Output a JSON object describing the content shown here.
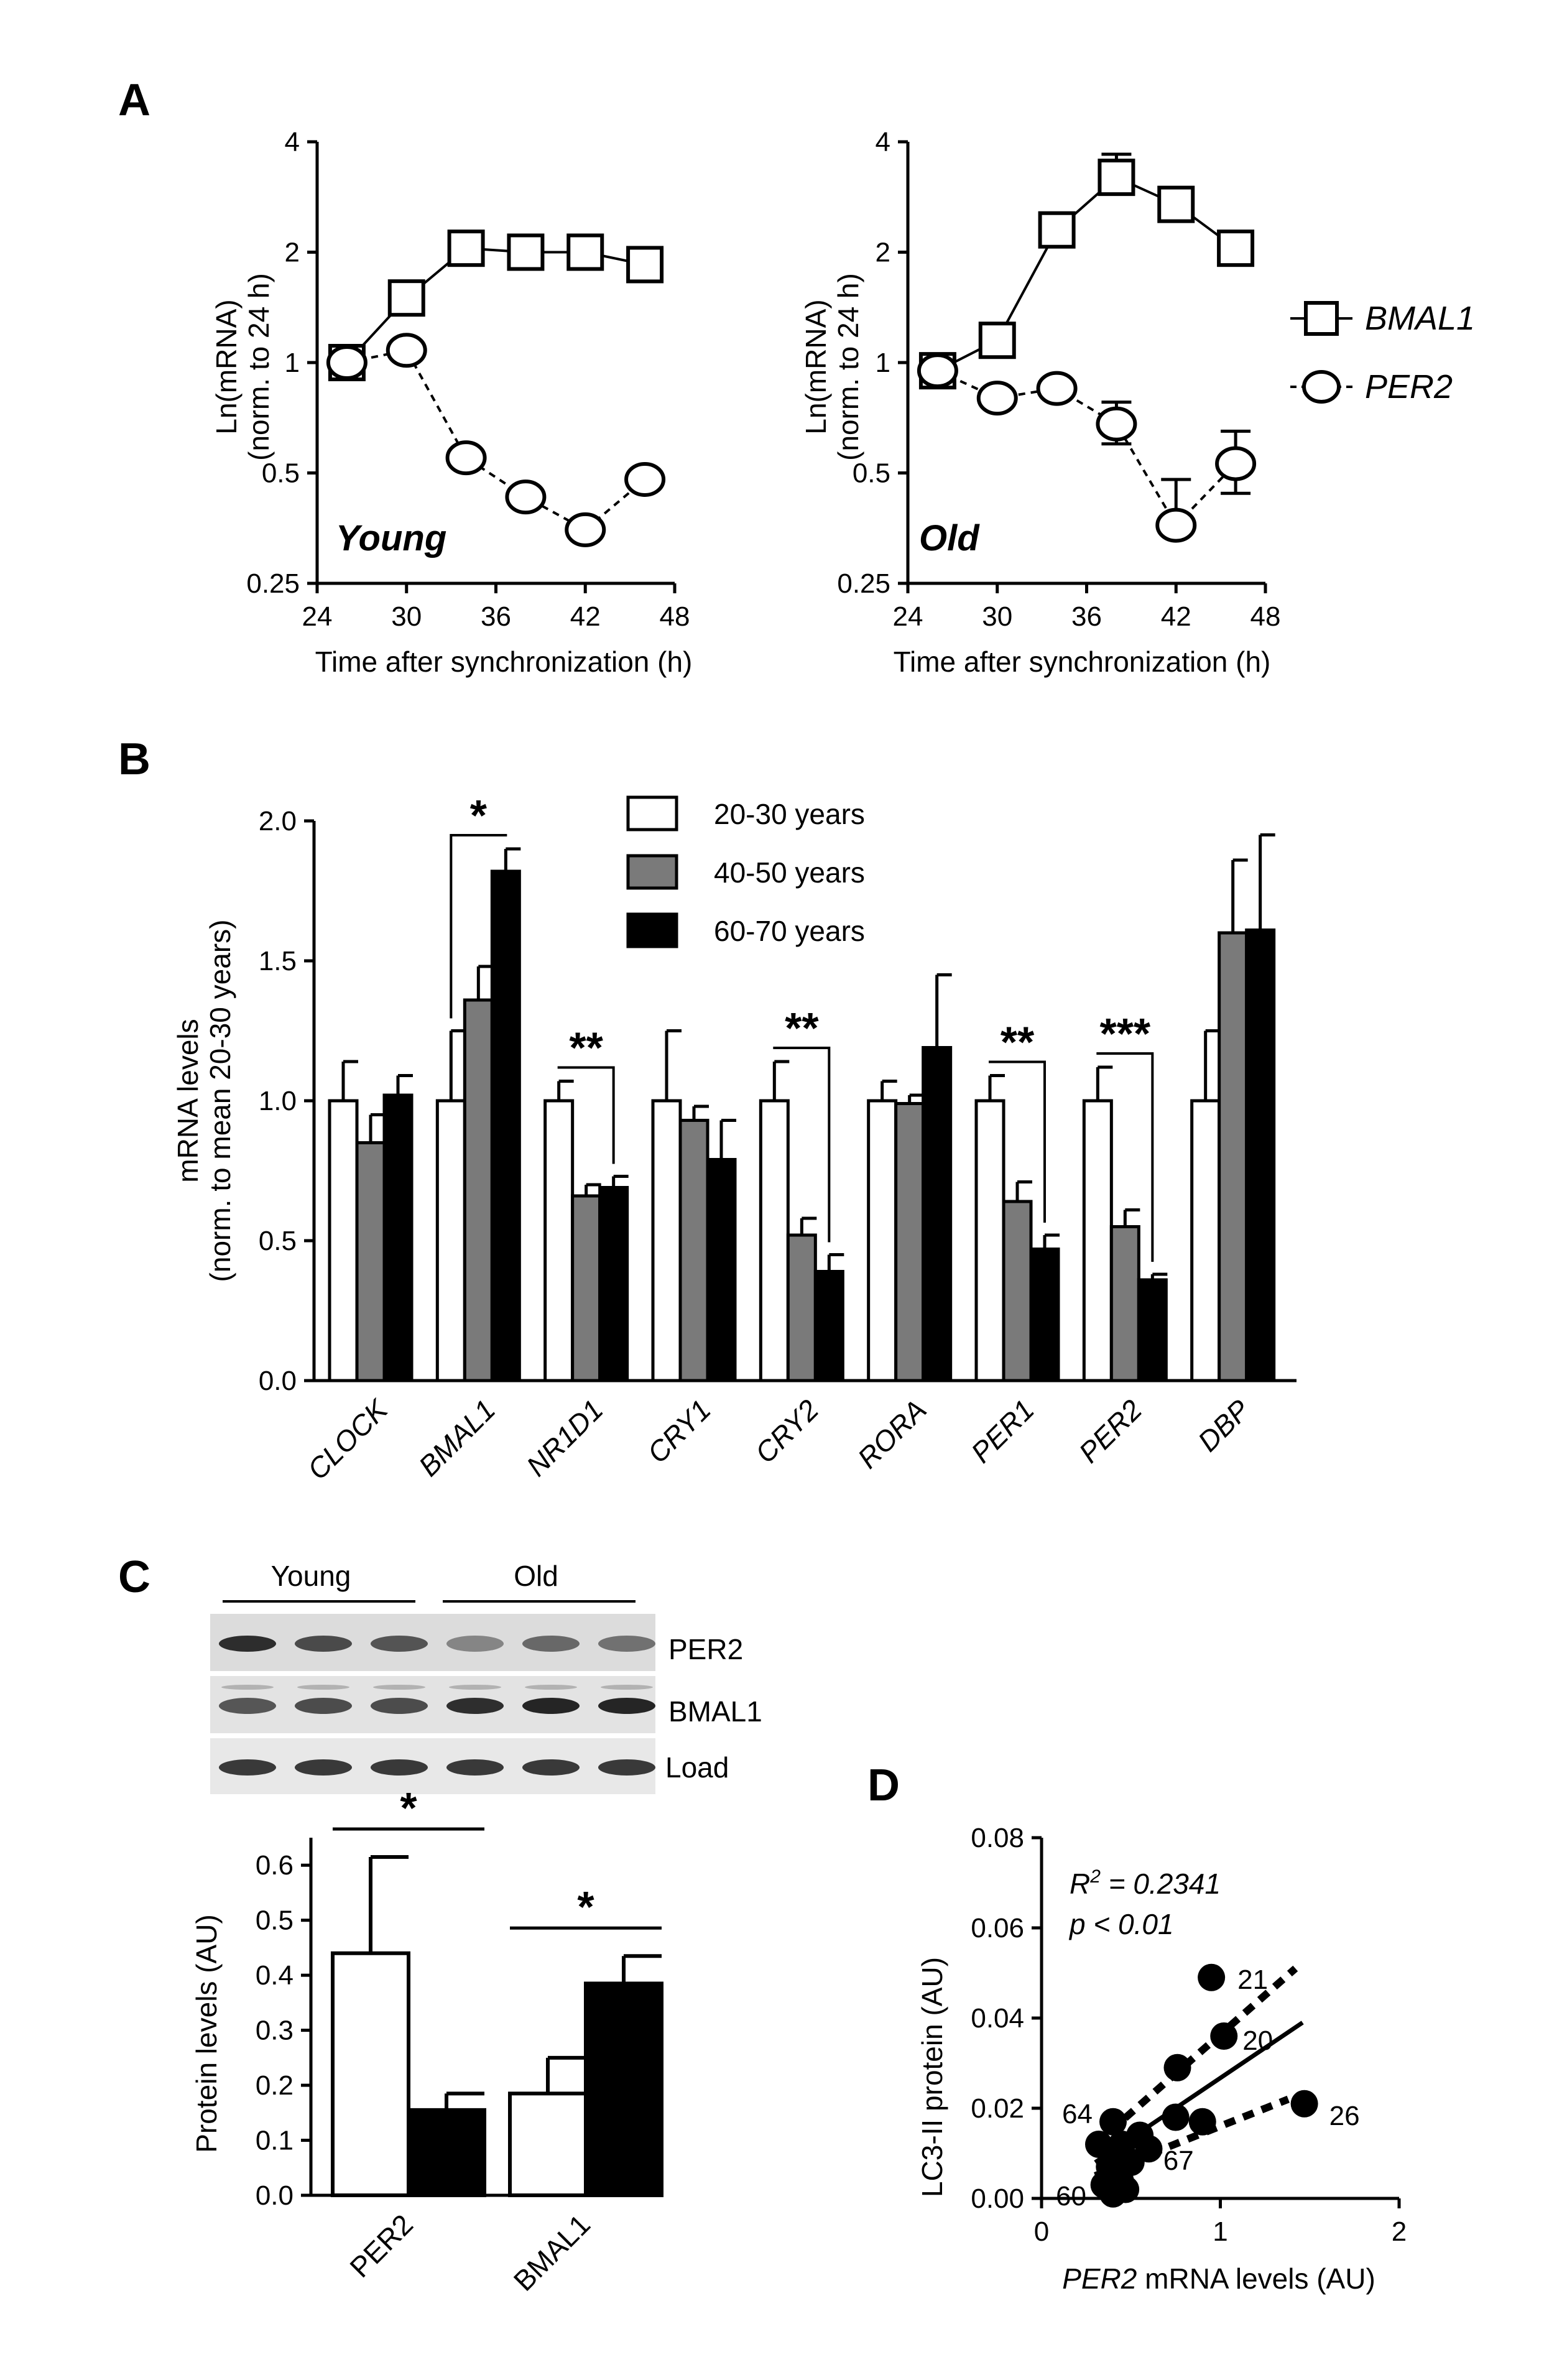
{
  "chart_data": [
    {
      "panel": "A",
      "type": "line",
      "inset_label": "Young",
      "xlabel": "Time after synchronization (h)",
      "ylabel": "Ln(mRNA)",
      "ylabel2": "(norm. to 24 h)",
      "y_scale": "log2",
      "xlim": [
        24,
        48
      ],
      "ylim": [
        0.25,
        4
      ],
      "xticks": [
        "24",
        "30",
        "36",
        "42",
        "48"
      ],
      "yticks": [
        "0.25",
        "0.5",
        "1",
        "2",
        "4"
      ],
      "x": [
        26,
        30,
        34,
        38,
        42,
        46
      ],
      "series": [
        {
          "name": "BMAL1",
          "marker": "square",
          "line": "solid",
          "values": [
            1.0,
            1.5,
            2.05,
            2.0,
            2.0,
            1.85
          ]
        },
        {
          "name": "PER2",
          "marker": "circle",
          "line": "dashed",
          "values": [
            1.0,
            1.08,
            0.55,
            0.43,
            0.35,
            0.48
          ]
        }
      ]
    },
    {
      "panel": "A",
      "type": "line",
      "inset_label": "Old",
      "xlabel": "Time after synchronization (h)",
      "ylabel": "Ln(mRNA)",
      "ylabel2": "(norm. to 24 h)",
      "y_scale": "log2",
      "xlim": [
        24,
        48
      ],
      "ylim": [
        0.25,
        4
      ],
      "xticks": [
        "24",
        "30",
        "36",
        "42",
        "48"
      ],
      "yticks": [
        "0.25",
        "0.5",
        "1",
        "2",
        "4"
      ],
      "x": [
        26,
        30,
        34,
        38,
        42,
        46
      ],
      "series": [
        {
          "name": "BMAL1",
          "marker": "square",
          "line": "solid",
          "values": [
            0.95,
            1.15,
            2.3,
            3.2,
            2.7,
            2.05
          ],
          "errors_up": [
            0,
            0,
            0,
            0.5,
            0,
            0
          ]
        },
        {
          "name": "PER2",
          "marker": "circle",
          "line": "dashed",
          "values": [
            0.95,
            0.8,
            0.85,
            0.68,
            0.36,
            0.53
          ],
          "errors_up": [
            0,
            0,
            0,
            0.1,
            0.12,
            0.12
          ],
          "errors_down": [
            0,
            0,
            0,
            0.08,
            0,
            0.09
          ]
        }
      ]
    },
    {
      "panel": "B",
      "type": "bar",
      "ylabel": "mRNA levels",
      "ylabel2": "(norm. to mean 20-30 years)",
      "ylim": [
        0,
        2.0
      ],
      "yticks": [
        "0.0",
        "0.5",
        "1.0",
        "1.5",
        "2.0"
      ],
      "categories": [
        "CLOCK",
        "BMAL1",
        "NR1D1",
        "CRY1",
        "CRY2",
        "RORA",
        "PER1",
        "PER2",
        "DBP"
      ],
      "series": [
        {
          "name": "20-30 years",
          "color": "#ffffff",
          "values": [
            1.0,
            1.0,
            1.0,
            1.0,
            1.0,
            1.0,
            1.0,
            1.0,
            1.0
          ],
          "errors": [
            0.14,
            0.25,
            0.07,
            0.25,
            0.14,
            0.07,
            0.09,
            0.12,
            0.25
          ]
        },
        {
          "name": "40-50 years",
          "color": "#7a7a7a",
          "values": [
            0.85,
            1.36,
            0.66,
            0.93,
            0.52,
            0.99,
            0.64,
            0.55,
            1.6
          ],
          "errors": [
            0.1,
            0.12,
            0.04,
            0.05,
            0.06,
            0.03,
            0.07,
            0.06,
            0.26
          ]
        },
        {
          "name": "60-70 years",
          "color": "#000000",
          "values": [
            1.02,
            1.82,
            0.69,
            0.79,
            0.39,
            1.19,
            0.47,
            0.36,
            1.61
          ],
          "errors": [
            0.07,
            0.08,
            0.04,
            0.14,
            0.06,
            0.26,
            0.05,
            0.02,
            0.34
          ]
        }
      ],
      "significance": [
        {
          "category": "BMAL1",
          "label": "*"
        },
        {
          "category": "NR1D1",
          "label": "**"
        },
        {
          "category": "CRY2",
          "label": "**"
        },
        {
          "category": "PER1",
          "label": "**"
        },
        {
          "category": "PER2",
          "label": "***"
        }
      ]
    },
    {
      "panel": "C",
      "type": "bar",
      "blot_groups": [
        "Young",
        "Old"
      ],
      "blot_rows": [
        "PER2",
        "BMAL1",
        "Load"
      ],
      "ylabel": "Protein levels (AU)",
      "ylim": [
        0,
        0.65
      ],
      "yticks": [
        "0.0",
        "0.1",
        "0.2",
        "0.3",
        "0.4",
        "0.5",
        "0.6"
      ],
      "categories": [
        "PER2",
        "BMAL1"
      ],
      "series": [
        {
          "name": "Young",
          "color": "#ffffff",
          "values": [
            0.44,
            0.185
          ],
          "errors": [
            0.175,
            0.065
          ]
        },
        {
          "name": "Old",
          "color": "#000000",
          "values": [
            0.155,
            0.385
          ],
          "errors": [
            0.03,
            0.05
          ]
        }
      ],
      "significance": [
        {
          "category": "PER2",
          "label": "*"
        },
        {
          "category": "BMAL1",
          "label": "*"
        }
      ]
    },
    {
      "panel": "D",
      "type": "scatter",
      "xlabel_italic": "PER2",
      "xlabel_rest": " mRNA levels (AU)",
      "ylabel": "LC3-II protein (AU)",
      "xlim": [
        0,
        2
      ],
      "ylim": [
        0,
        0.08
      ],
      "xticks": [
        "0",
        "1",
        "2"
      ],
      "yticks": [
        "0.00",
        "0.02",
        "0.04",
        "0.06",
        "0.08"
      ],
      "stat1_pre": "R",
      "stat1_sup": "2",
      "stat1_post": " = 0.2341",
      "stat2": "p < 0.01",
      "points": [
        {
          "x": 0.95,
          "y": 0.049,
          "label": "21"
        },
        {
          "x": 1.02,
          "y": 0.036,
          "label": "20"
        },
        {
          "x": 1.47,
          "y": 0.021,
          "label": "26"
        },
        {
          "x": 0.4,
          "y": 0.017,
          "label": "64"
        },
        {
          "x": 0.4,
          "y": 0.001,
          "label": "60"
        },
        {
          "x": 0.5,
          "y": 0.008,
          "label": "67"
        },
        {
          "x": 0.76,
          "y": 0.029,
          "label": ""
        },
        {
          "x": 0.75,
          "y": 0.018,
          "label": ""
        },
        {
          "x": 0.9,
          "y": 0.017,
          "label": ""
        },
        {
          "x": 0.55,
          "y": 0.014,
          "label": ""
        },
        {
          "x": 0.6,
          "y": 0.011,
          "label": ""
        },
        {
          "x": 0.45,
          "y": 0.012,
          "label": ""
        },
        {
          "x": 0.32,
          "y": 0.012,
          "label": ""
        },
        {
          "x": 0.38,
          "y": 0.007,
          "label": ""
        },
        {
          "x": 0.44,
          "y": 0.004,
          "label": ""
        },
        {
          "x": 0.35,
          "y": 0.003,
          "label": ""
        },
        {
          "x": 0.47,
          "y": 0.002,
          "label": ""
        }
      ],
      "fit": {
        "x": [
          0.3,
          1.46
        ],
        "y": [
          0.008,
          0.039
        ]
      },
      "ci_upper": {
        "x": [
          0.3,
          1.42
        ],
        "y": [
          0.012,
          0.051
        ]
      },
      "ci_lower": {
        "x": [
          0.3,
          1.38
        ],
        "y": [
          0.005,
          0.022
        ]
      }
    }
  ],
  "panel_labels": {
    "a": "A",
    "b": "B",
    "c": "C",
    "d": "D"
  },
  "legend_a": {
    "bmal1": "BMAL1",
    "per2": "PER2"
  },
  "legend_b": [
    "20-30 years",
    "40-50 years",
    "60-70 years"
  ]
}
